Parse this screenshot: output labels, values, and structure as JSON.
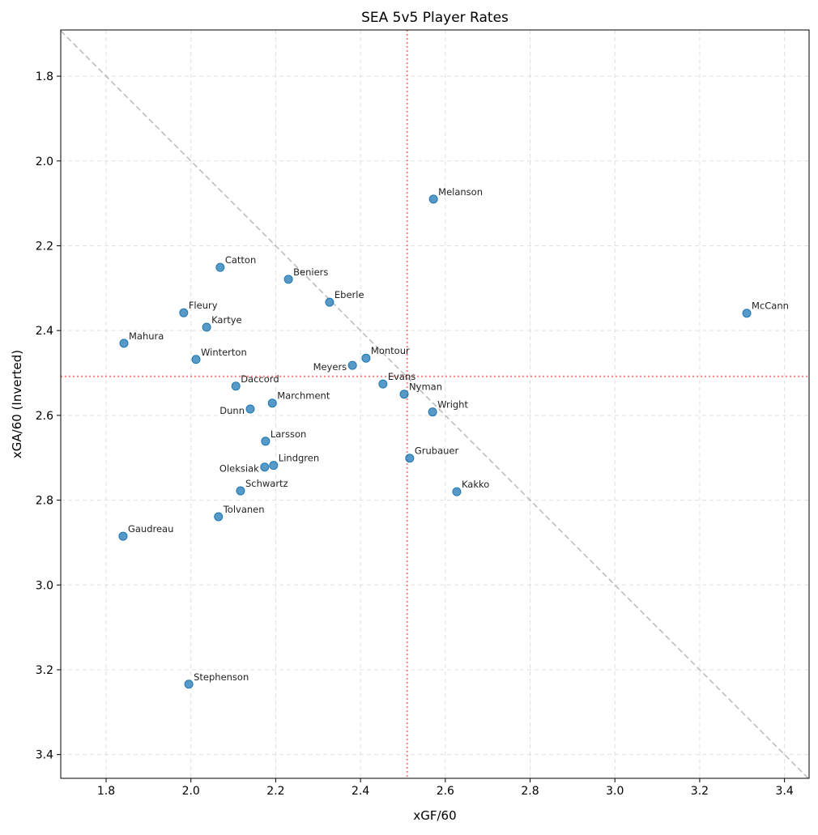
{
  "chart_data": {
    "type": "scatter",
    "title": "SEA 5v5 Player Rates",
    "xlabel": "xGF/60",
    "ylabel": "xGA/60 (Inverted)",
    "xlim": [
      1.693,
      3.458
    ],
    "ylim": [
      1.691,
      3.456
    ],
    "y_inverted": true,
    "grid": true,
    "x_ticks": [
      "1.8",
      "2.0",
      "2.2",
      "2.4",
      "2.6",
      "2.8",
      "3.0",
      "3.2",
      "3.4"
    ],
    "y_ticks": [
      "1.8",
      "2.0",
      "2.2",
      "2.4",
      "2.6",
      "2.8",
      "3.0",
      "3.2",
      "3.4"
    ],
    "point_color": "#1f77b4",
    "reference_lines": {
      "diagonal": {
        "type": "y=x",
        "color": "#999999",
        "style": "dashed"
      },
      "mean_x": {
        "value": 2.51,
        "color": "#ff0000",
        "style": "dotted"
      },
      "mean_y": {
        "value": 2.508,
        "color": "#ff0000",
        "style": "dotted"
      }
    },
    "points": [
      {
        "label": "Melanson",
        "x": 2.572,
        "y": 2.09
      },
      {
        "label": "McCann",
        "x": 3.311,
        "y": 2.359
      },
      {
        "label": "Catton",
        "x": 2.069,
        "y": 2.251
      },
      {
        "label": "Beniers",
        "x": 2.23,
        "y": 2.279
      },
      {
        "label": "Eberle",
        "x": 2.327,
        "y": 2.333
      },
      {
        "label": "Fleury",
        "x": 1.983,
        "y": 2.358
      },
      {
        "label": "Kartye",
        "x": 2.037,
        "y": 2.392
      },
      {
        "label": "Mahura",
        "x": 1.842,
        "y": 2.43
      },
      {
        "label": "Winterton",
        "x": 2.012,
        "y": 2.468
      },
      {
        "label": "Montour",
        "x": 2.413,
        "y": 2.465
      },
      {
        "label": "Meyers",
        "x": 2.381,
        "y": 2.482
      },
      {
        "label": "Daccord",
        "x": 2.106,
        "y": 2.531
      },
      {
        "label": "Evans",
        "x": 2.453,
        "y": 2.526
      },
      {
        "label": "Nyman",
        "x": 2.503,
        "y": 2.55
      },
      {
        "label": "Marchment",
        "x": 2.192,
        "y": 2.571
      },
      {
        "label": "Dunn",
        "x": 2.14,
        "y": 2.585
      },
      {
        "label": "Wright",
        "x": 2.57,
        "y": 2.592
      },
      {
        "label": "Larsson",
        "x": 2.176,
        "y": 2.661
      },
      {
        "label": "Grubauer",
        "x": 2.516,
        "y": 2.701
      },
      {
        "label": "Lindgren",
        "x": 2.195,
        "y": 2.718
      },
      {
        "label": "Oleksiak",
        "x": 2.174,
        "y": 2.722
      },
      {
        "label": "Schwartz",
        "x": 2.117,
        "y": 2.778
      },
      {
        "label": "Kakko",
        "x": 2.627,
        "y": 2.78
      },
      {
        "label": "Tolvanen",
        "x": 2.065,
        "y": 2.839
      },
      {
        "label": "Gaudreau",
        "x": 1.84,
        "y": 2.885
      },
      {
        "label": "Stephenson",
        "x": 1.995,
        "y": 3.234
      }
    ]
  }
}
